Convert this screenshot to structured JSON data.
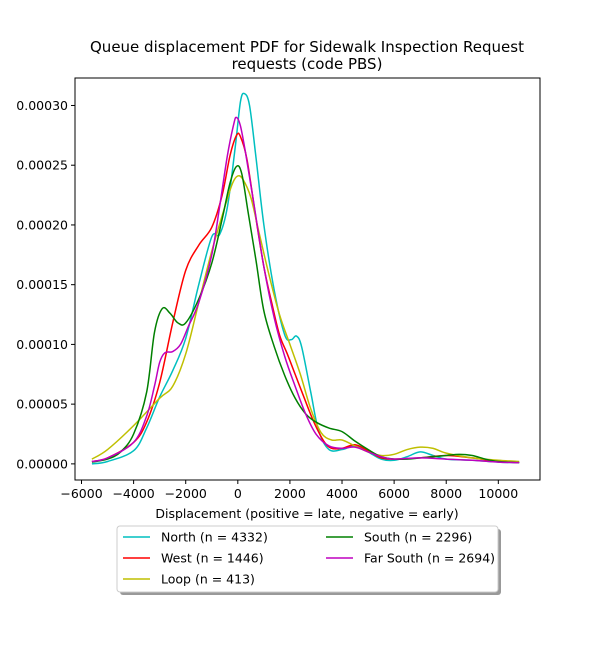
{
  "chart_data": {
    "type": "line",
    "title_lines": [
      "Queue displacement PDF for Sidewalk Inspection Request",
      "requests (code PBS)"
    ],
    "xlabel": "Displacement (positive = late, negative = early)",
    "ylabel": "",
    "xlim": [
      -6250,
      11600
    ],
    "ylim": [
      -1.35e-05,
      0.000323
    ],
    "xticks": [
      -6000,
      -4000,
      -2000,
      0,
      2000,
      4000,
      6000,
      8000,
      10000
    ],
    "xtick_labels": [
      "−6000",
      "−4000",
      "−2000",
      "0",
      "2000",
      "4000",
      "6000",
      "8000",
      "10000"
    ],
    "yticks": [
      0,
      5e-05,
      0.0001,
      0.00015,
      0.0002,
      0.00025,
      0.0003
    ],
    "ytick_labels": [
      "0.00000",
      "0.00005",
      "0.00010",
      "0.00015",
      "0.00020",
      "0.00025",
      "0.00030"
    ],
    "grid": false,
    "legend_position": "below",
    "series": [
      {
        "name": "North (n = 4332)",
        "color": "#00bfbf",
        "points": [
          [
            -5600,
            0
          ],
          [
            -5000,
            2e-06
          ],
          [
            -4000,
            1.1e-05
          ],
          [
            -3500,
            3e-05
          ],
          [
            -3000,
            5.6e-05
          ],
          [
            -2500,
            7.8e-05
          ],
          [
            -2000,
            0.000105
          ],
          [
            -1500,
            0.00015
          ],
          [
            -1000,
            0.00019
          ],
          [
            -700,
            0.000192
          ],
          [
            -400,
            0.000215
          ],
          [
            -100,
            0.000265
          ],
          [
            100,
            0.000303
          ],
          [
            250,
            0.00031
          ],
          [
            450,
            0.0003
          ],
          [
            700,
            0.000256
          ],
          [
            1000,
            0.0002
          ],
          [
            1400,
            0.000145
          ],
          [
            1800,
            0.000108
          ],
          [
            2050,
            0.000104
          ],
          [
            2250,
            0.000107
          ],
          [
            2450,
            9.8e-05
          ],
          [
            2800,
            6e-05
          ],
          [
            3100,
            2.8e-05
          ],
          [
            3500,
            1.2e-05
          ],
          [
            4000,
            1.2e-05
          ],
          [
            4500,
            1.5e-05
          ],
          [
            5000,
            1e-05
          ],
          [
            5500,
            4e-06
          ],
          [
            6000,
            3e-06
          ],
          [
            6500,
            6e-06
          ],
          [
            7000,
            1e-05
          ],
          [
            7500,
            7e-06
          ],
          [
            8000,
            4e-06
          ],
          [
            9000,
            3e-06
          ],
          [
            10000,
            1.5e-06
          ],
          [
            10800,
            1e-06
          ]
        ]
      },
      {
        "name": "West (n = 1446)",
        "color": "#ff0000",
        "points": [
          [
            -5600,
            2e-06
          ],
          [
            -5000,
            5e-06
          ],
          [
            -4000,
            1.8e-05
          ],
          [
            -3500,
            3.5e-05
          ],
          [
            -3000,
            6.8e-05
          ],
          [
            -2500,
            0.000118
          ],
          [
            -2000,
            0.000162
          ],
          [
            -1500,
            0.000183
          ],
          [
            -1000,
            0.000198
          ],
          [
            -600,
            0.000225
          ],
          [
            -300,
            0.000258
          ],
          [
            -50,
            0.000275
          ],
          [
            100,
            0.000274
          ],
          [
            350,
            0.000255
          ],
          [
            700,
            0.000205
          ],
          [
            1000,
            0.000165
          ],
          [
            1300,
            0.000135
          ],
          [
            1600,
            0.000108
          ],
          [
            1900,
            9.2e-05
          ],
          [
            2200,
            7.5e-05
          ],
          [
            2500,
            5.8e-05
          ],
          [
            2900,
            3.6e-05
          ],
          [
            3300,
            1.9e-05
          ],
          [
            3600,
            1.3e-05
          ],
          [
            4000,
            1.3e-05
          ],
          [
            4500,
            1.6e-05
          ],
          [
            5000,
            1.1e-05
          ],
          [
            5500,
            5e-06
          ],
          [
            6000,
            4e-06
          ],
          [
            7000,
            5e-06
          ],
          [
            8000,
            7e-06
          ],
          [
            9000,
            5e-06
          ],
          [
            10000,
            2e-06
          ],
          [
            10800,
            1.5e-06
          ]
        ]
      },
      {
        "name": "Loop (n = 413)",
        "color": "#bfbf00",
        "points": [
          [
            -5600,
            4e-06
          ],
          [
            -5000,
            1.2e-05
          ],
          [
            -4000,
            3.2e-05
          ],
          [
            -3000,
            5.5e-05
          ],
          [
            -2500,
            6.5e-05
          ],
          [
            -2000,
            9.2e-05
          ],
          [
            -1500,
            0.000135
          ],
          [
            -1000,
            0.000178
          ],
          [
            -500,
            0.000215
          ],
          [
            -200,
            0.000235
          ],
          [
            0,
            0.000241
          ],
          [
            200,
            0.000238
          ],
          [
            500,
            0.000223
          ],
          [
            800,
            0.000195
          ],
          [
            1200,
            0.000158
          ],
          [
            1600,
            0.000125
          ],
          [
            2000,
            0.0001
          ],
          [
            2400,
            7.5e-05
          ],
          [
            2800,
            4.6e-05
          ],
          [
            3200,
            2.6e-05
          ],
          [
            3600,
            2e-05
          ],
          [
            4000,
            2e-05
          ],
          [
            4500,
            1.5e-05
          ],
          [
            5000,
            1e-05
          ],
          [
            5500,
            7e-06
          ],
          [
            6000,
            8e-06
          ],
          [
            6500,
            1.2e-05
          ],
          [
            7000,
            1.4e-05
          ],
          [
            7500,
            1.3e-05
          ],
          [
            8000,
            9e-06
          ],
          [
            9000,
            5e-06
          ],
          [
            10000,
            3e-06
          ],
          [
            10800,
            2e-06
          ]
        ]
      },
      {
        "name": "South (n = 2296)",
        "color": "#008000",
        "points": [
          [
            -5600,
            1.5e-06
          ],
          [
            -5000,
            4e-06
          ],
          [
            -4500,
            1e-05
          ],
          [
            -4000,
            2.5e-05
          ],
          [
            -3500,
            6e-05
          ],
          [
            -3200,
            0.00011
          ],
          [
            -2900,
            0.00013
          ],
          [
            -2600,
            0.000126
          ],
          [
            -2300,
            0.000118
          ],
          [
            -2000,
            0.000118
          ],
          [
            -1500,
            0.000138
          ],
          [
            -1000,
            0.000168
          ],
          [
            -600,
            0.000205
          ],
          [
            -300,
            0.000235
          ],
          [
            -50,
            0.000249
          ],
          [
            150,
            0.000243
          ],
          [
            400,
            0.00021
          ],
          [
            700,
            0.00017
          ],
          [
            1000,
            0.000128
          ],
          [
            1400,
            9.8e-05
          ],
          [
            1800,
            7.4e-05
          ],
          [
            2200,
            5.5e-05
          ],
          [
            2600,
            4.2e-05
          ],
          [
            3000,
            3.5e-05
          ],
          [
            3500,
            3e-05
          ],
          [
            4000,
            2.7e-05
          ],
          [
            4500,
            1.9e-05
          ],
          [
            5000,
            1.2e-05
          ],
          [
            5500,
            6e-06
          ],
          [
            6000,
            4e-06
          ],
          [
            6500,
            4e-06
          ],
          [
            7000,
            5e-06
          ],
          [
            7500,
            6e-06
          ],
          [
            8000,
            7e-06
          ],
          [
            8500,
            8e-06
          ],
          [
            9000,
            7e-06
          ],
          [
            9500,
            4e-06
          ],
          [
            10000,
            2e-06
          ],
          [
            10800,
            1e-06
          ]
        ]
      },
      {
        "name": "Far South (n = 2694)",
        "color": "#bf00bf",
        "points": [
          [
            -5600,
            2e-06
          ],
          [
            -5000,
            5e-06
          ],
          [
            -4000,
            1.8e-05
          ],
          [
            -3500,
            4e-05
          ],
          [
            -3200,
            6.5e-05
          ],
          [
            -3000,
            8.5e-05
          ],
          [
            -2800,
            9.3e-05
          ],
          [
            -2500,
            9.4e-05
          ],
          [
            -2200,
            0.0001
          ],
          [
            -1900,
            0.000115
          ],
          [
            -1500,
            0.000135
          ],
          [
            -1000,
            0.000175
          ],
          [
            -700,
            0.000215
          ],
          [
            -400,
            0.000258
          ],
          [
            -150,
            0.000285
          ],
          [
            -50,
            0.00029
          ],
          [
            100,
            0.000283
          ],
          [
            300,
            0.00026
          ],
          [
            600,
            0.00022
          ],
          [
            1000,
            0.000165
          ],
          [
            1400,
            0.000122
          ],
          [
            1800,
            9e-05
          ],
          [
            2200,
            6.5e-05
          ],
          [
            2600,
            4.2e-05
          ],
          [
            3000,
            2.5e-05
          ],
          [
            3500,
            1.5e-05
          ],
          [
            4000,
            1.3e-05
          ],
          [
            4500,
            1.4e-05
          ],
          [
            5000,
            1e-05
          ],
          [
            5500,
            6e-06
          ],
          [
            6000,
            4e-06
          ],
          [
            7000,
            5e-06
          ],
          [
            8000,
            4e-06
          ],
          [
            9000,
            3e-06
          ],
          [
            10000,
            1.5e-06
          ],
          [
            10800,
            1e-06
          ]
        ]
      }
    ]
  }
}
